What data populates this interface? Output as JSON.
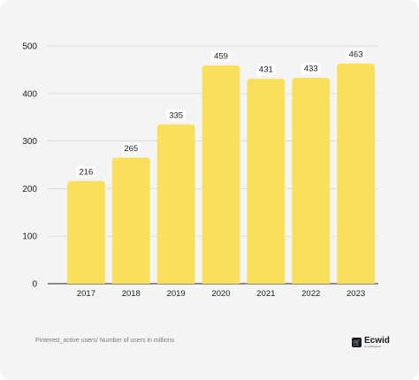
{
  "chart_data": {
    "type": "bar",
    "categories": [
      "2017",
      "2018",
      "2019",
      "2020",
      "2021",
      "2022",
      "2023"
    ],
    "values": [
      216,
      265,
      335,
      459,
      431,
      433,
      463
    ],
    "data_labels": [
      "216",
      "265",
      "335",
      "459",
      "431",
      "433",
      "463"
    ],
    "yticks": [
      "0",
      "100",
      "200",
      "300",
      "400",
      "500"
    ],
    "ylim": [
      0,
      500
    ],
    "grid": true,
    "bar_color": "#f9e05c"
  },
  "footer": {
    "caption": "Pinterest_active users/ Number of users in millions",
    "brand_name": "Ecwid",
    "brand_sub": "by Lightspeed"
  },
  "colors": {
    "background": "#f4f4f4",
    "grid": "#d4d4d4",
    "text": "#222222"
  }
}
